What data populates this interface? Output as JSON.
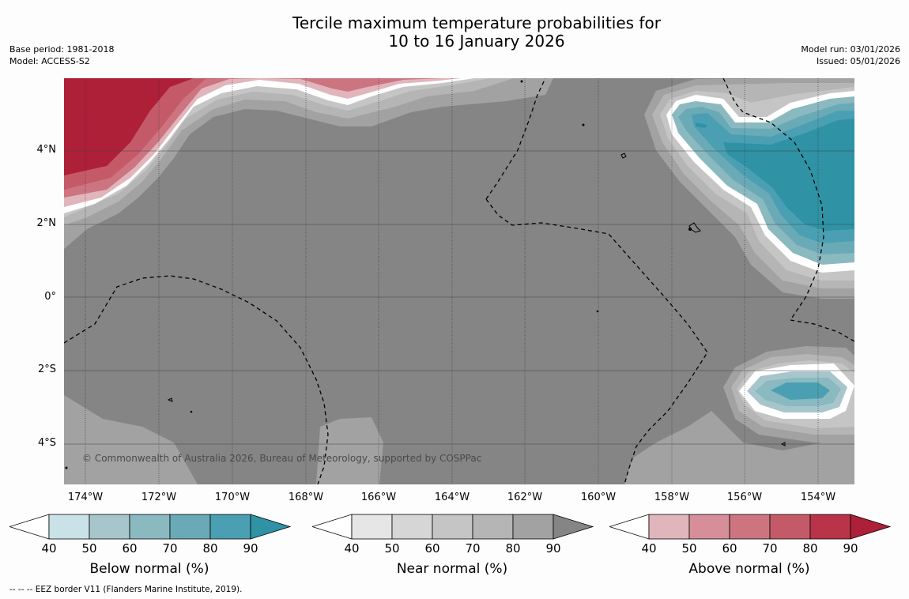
{
  "title": {
    "line1": "Tercile maximum temperature probabilities for",
    "line2": "10 to 16 January 2026"
  },
  "meta_left": {
    "base_period": "Base period: 1981-2018",
    "model": "Model: ACCESS-S2"
  },
  "meta_right": {
    "model_run": "Model run: 03/01/2026",
    "issued": "Issued: 05/01/2026"
  },
  "map": {
    "lat_labels": [
      "4°N",
      "2°N",
      "0°",
      "2°S",
      "4°S"
    ],
    "lon_labels": [
      "174°W",
      "172°W",
      "170°W",
      "168°W",
      "166°W",
      "164°W",
      "162°W",
      "160°W",
      "158°W",
      "156°W",
      "154°W"
    ],
    "copyright": "© Commonwealth of Australia 2026, Bureau of Meteorology, supported by COSPPac",
    "background_color": "#858585"
  },
  "colorbars": [
    {
      "label": "Below normal (%)",
      "ticks": [
        "40",
        "50",
        "60",
        "70",
        "80",
        "90"
      ],
      "colors": [
        "#ffffff",
        "#c9e2e8",
        "#a7c6cb",
        "#8ab9c0",
        "#6aaab7",
        "#4aa0b2",
        "#2f92a5"
      ]
    },
    {
      "label": "Near normal (%)",
      "ticks": [
        "40",
        "50",
        "60",
        "70",
        "80",
        "90"
      ],
      "colors": [
        "#ffffff",
        "#e6e6e6",
        "#d6d6d6",
        "#c5c5c5",
        "#b5b5b5",
        "#a2a2a2",
        "#858585"
      ]
    },
    {
      "label": "Above normal (%)",
      "ticks": [
        "40",
        "50",
        "60",
        "70",
        "80",
        "90"
      ],
      "colors": [
        "#ffffff",
        "#e1b5bc",
        "#d68f98",
        "#cc7580",
        "#c45a68",
        "#b93349",
        "#ae1f38"
      ]
    }
  ],
  "footnote": "--  --  -- EEZ border V11 (Flanders Marine Institute, 2019)."
}
